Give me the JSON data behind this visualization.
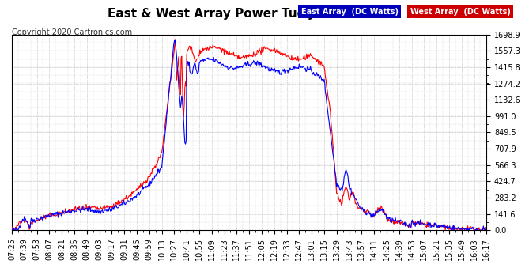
{
  "title": "East & West Array Power Tue Jan 7 16:29",
  "copyright": "Copyright 2020 Cartronics.com",
  "legend_east": "East Array  (DC Watts)",
  "legend_west": "West Array  (DC Watts)",
  "east_color": "#0000ff",
  "west_color": "#ff0000",
  "legend_east_bg": "#0000bb",
  "legend_west_bg": "#cc0000",
  "background_color": "#ffffff",
  "plot_bg_color": "#ffffff",
  "grid_color": "#999999",
  "ylim": [
    0.0,
    1698.9
  ],
  "yticks": [
    0.0,
    141.6,
    283.2,
    424.7,
    566.3,
    707.9,
    849.5,
    991.0,
    1132.6,
    1274.2,
    1415.8,
    1557.3,
    1698.9
  ],
  "title_fontsize": 11,
  "tick_fontsize": 7,
  "copyright_fontsize": 7
}
